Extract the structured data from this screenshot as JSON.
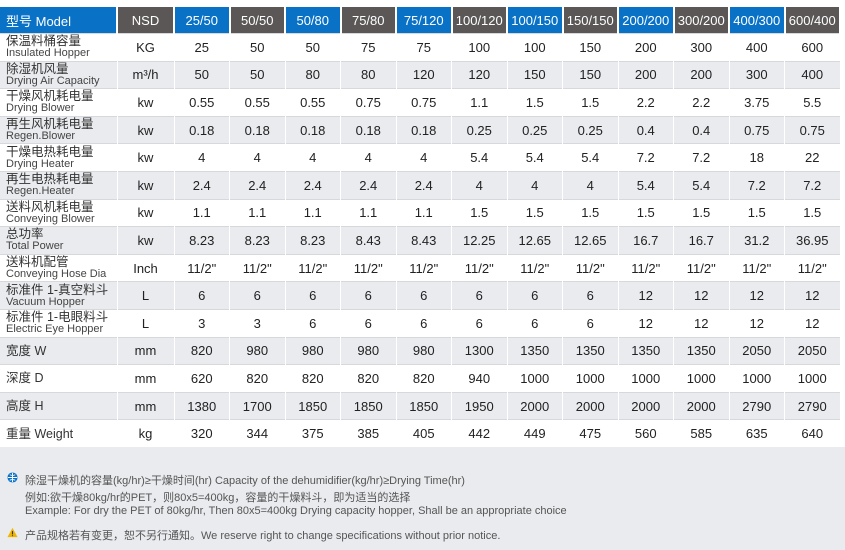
{
  "header": {
    "model": "型号 Model",
    "unit": "NSD",
    "columns": [
      "25/50",
      "50/50",
      "50/80",
      "75/80",
      "75/120",
      "100/120",
      "100/150",
      "150/150",
      "200/200",
      "300/200",
      "400/300",
      "600/400"
    ]
  },
  "colors": {
    "blue": "#0a72c6",
    "gray": "#5b5757",
    "row_alt": "#e9ebee"
  },
  "rows": [
    {
      "cn": "保温料桶容量",
      "en": "Insulated Hopper",
      "unit": "KG",
      "values": [
        "25",
        "50",
        "50",
        "75",
        "75",
        "100",
        "100",
        "150",
        "200",
        "300",
        "400",
        "600"
      ]
    },
    {
      "cn": "除湿机风量",
      "en": "Drying Air Capacity",
      "unit": "m³/h",
      "values": [
        "50",
        "50",
        "80",
        "80",
        "120",
        "120",
        "150",
        "150",
        "200",
        "200",
        "300",
        "400"
      ]
    },
    {
      "cn": "干燥风机耗电量",
      "en": "Drying Blower",
      "unit": "kw",
      "values": [
        "0.55",
        "0.55",
        "0.55",
        "0.75",
        "0.75",
        "1.1",
        "1.5",
        "1.5",
        "2.2",
        "2.2",
        "3.75",
        "5.5"
      ]
    },
    {
      "cn": "再生风机耗电量",
      "en": "Regen.Blower",
      "unit": "kw",
      "values": [
        "0.18",
        "0.18",
        "0.18",
        "0.18",
        "0.18",
        "0.25",
        "0.25",
        "0.25",
        "0.4",
        "0.4",
        "0.75",
        "0.75"
      ]
    },
    {
      "cn": "干燥电热耗电量",
      "en": "Drying Heater",
      "unit": "kw",
      "values": [
        "4",
        "4",
        "4",
        "4",
        "4",
        "5.4",
        "5.4",
        "5.4",
        "7.2",
        "7.2",
        "18",
        "22"
      ]
    },
    {
      "cn": "再生电热耗电量",
      "en": "Regen.Heater",
      "unit": "kw",
      "values": [
        "2.4",
        "2.4",
        "2.4",
        "2.4",
        "2.4",
        "4",
        "4",
        "4",
        "5.4",
        "5.4",
        "7.2",
        "7.2"
      ]
    },
    {
      "cn": "送料风机耗电量",
      "en": "Conveying Blower",
      "unit": "kw",
      "values": [
        "1.1",
        "1.1",
        "1.1",
        "1.1",
        "1.1",
        "1.5",
        "1.5",
        "1.5",
        "1.5",
        "1.5",
        "1.5",
        "1.5"
      ]
    },
    {
      "cn": "总功率",
      "en": "Total Power",
      "unit": "kw",
      "values": [
        "8.23",
        "8.23",
        "8.23",
        "8.43",
        "8.43",
        "12.25",
        "12.65",
        "12.65",
        "16.7",
        "16.7",
        "31.2",
        "36.95"
      ]
    },
    {
      "cn": "送料机配管",
      "en": "Conveying Hose Dia",
      "unit": "Inch",
      "values": [
        "11/2\"",
        "11/2\"",
        "11/2\"",
        "11/2\"",
        "11/2\"",
        "11/2\"",
        "11/2\"",
        "11/2\"",
        "11/2\"",
        "11/2\"",
        "11/2\"",
        "11/2\""
      ]
    },
    {
      "cn": "标准件 1-真空料斗",
      "en": "Vacuum Hopper",
      "unit": "L",
      "values": [
        "6",
        "6",
        "6",
        "6",
        "6",
        "6",
        "6",
        "6",
        "12",
        "12",
        "12",
        "12"
      ]
    },
    {
      "cn": "标准件 1-电眼料斗",
      "en": "Electric Eye Hopper",
      "unit": "L",
      "values": [
        "3",
        "3",
        "6",
        "6",
        "6",
        "6",
        "6",
        "6",
        "12",
        "12",
        "12",
        "12"
      ]
    },
    {
      "cn": "宽度 W",
      "en": "",
      "unit": "mm",
      "values": [
        "820",
        "980",
        "980",
        "980",
        "980",
        "1300",
        "1350",
        "1350",
        "1350",
        "1350",
        "2050",
        "2050"
      ]
    },
    {
      "cn": "深度 D",
      "en": "",
      "unit": "mm",
      "values": [
        "620",
        "820",
        "820",
        "820",
        "820",
        "940",
        "1000",
        "1000",
        "1000",
        "1000",
        "1000",
        "1000"
      ]
    },
    {
      "cn": "高度 H",
      "en": "",
      "unit": "mm",
      "values": [
        "1380",
        "1700",
        "1850",
        "1850",
        "1850",
        "1950",
        "2000",
        "2000",
        "2000",
        "2000",
        "2790",
        "2790"
      ]
    },
    {
      "cn": "重量 Weight",
      "en": "",
      "unit": "kg",
      "values": [
        "320",
        "344",
        "375",
        "385",
        "405",
        "442",
        "449",
        "475",
        "560",
        "585",
        "635",
        "640"
      ]
    }
  ],
  "notes": {
    "line1": "除湿干燥机的容量(kg/hr)≥干燥时间(hr)   Capacity of the dehumidifier(kg/hr)≥Drying Time(hr)",
    "line2": "例如:欲干燥80kg/hr的PET，则80x5=400kg，容量的干燥料斗，即为适当的选择",
    "line3": "Example: For dry the PET of 80kg/hr, Then 80x5=400kg Drying capacity hopper, Shall be an appropriate choice",
    "line4": "产品规格若有变更，恕不另行通知。We reserve right to change specifications without prior notice.",
    "icon1": "info-globe-icon",
    "icon2": "warning-icon"
  }
}
